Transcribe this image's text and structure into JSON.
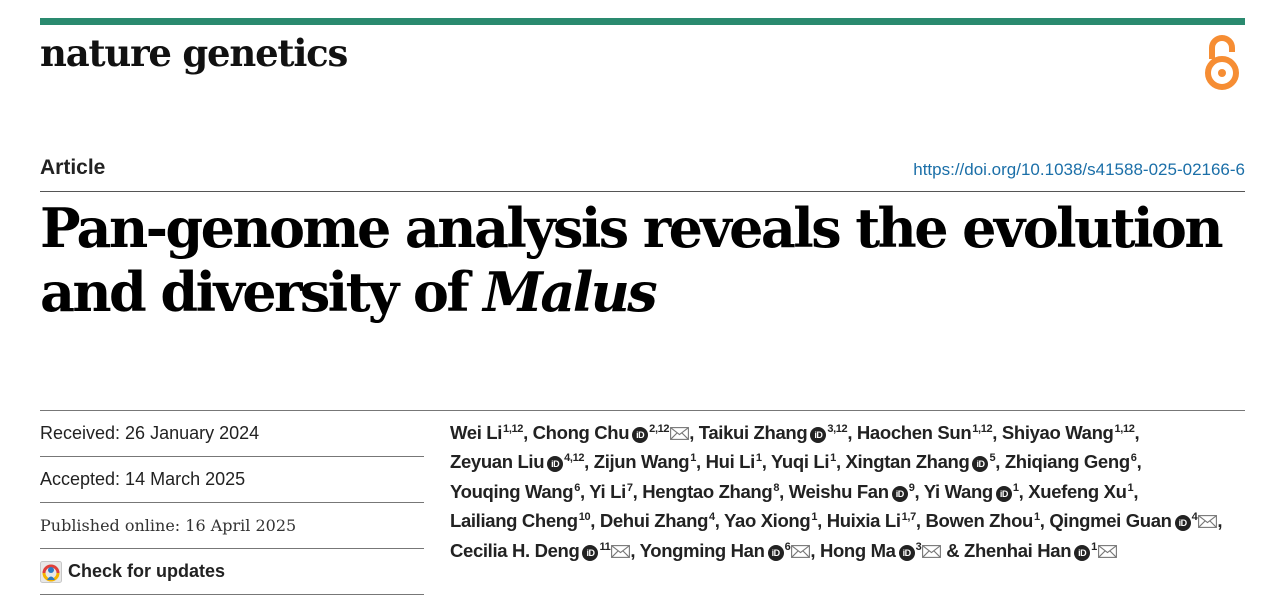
{
  "journal": {
    "name": "nature genetics",
    "accent_color": "#2a8a6f",
    "open_access_icon": "open-access-icon",
    "open_access_color": "#f68d33"
  },
  "article": {
    "type": "Article",
    "doi": "https://doi.org/10.1038/s41588-025-02166-6",
    "title_main": "Pan-genome analysis reveals the evolution and diversity of ",
    "title_species": "Malus",
    "link_color": "#1b6fa8"
  },
  "dates": {
    "received": "Received: 26 January 2024",
    "accepted": "Accepted: 14 March 2025",
    "published": "Published online: 16 April 2025",
    "check_updates": "Check for updates"
  },
  "authors": [
    {
      "name": "Wei Li",
      "aff": "1,12",
      "orcid": false,
      "corr": false
    },
    {
      "name": "Chong Chu",
      "aff": "2,12",
      "orcid": true,
      "corr": true
    },
    {
      "name": "Taikui Zhang",
      "aff": "3,12",
      "orcid": true,
      "corr": false
    },
    {
      "name": "Haochen Sun",
      "aff": "1,12",
      "orcid": false,
      "corr": false
    },
    {
      "name": "Shiyao Wang",
      "aff": "1,12",
      "orcid": false,
      "corr": false
    },
    {
      "name": "Zeyuan Liu",
      "aff": "4,12",
      "orcid": true,
      "corr": false
    },
    {
      "name": "Zijun Wang",
      "aff": "1",
      "orcid": false,
      "corr": false
    },
    {
      "name": "Hui Li",
      "aff": "1",
      "orcid": false,
      "corr": false
    },
    {
      "name": "Yuqi Li",
      "aff": "1",
      "orcid": false,
      "corr": false
    },
    {
      "name": "Xingtan Zhang",
      "aff": "5",
      "orcid": true,
      "corr": false
    },
    {
      "name": "Zhiqiang Geng",
      "aff": "6",
      "orcid": false,
      "corr": false
    },
    {
      "name": "Youqing Wang",
      "aff": "6",
      "orcid": false,
      "corr": false
    },
    {
      "name": "Yi Li",
      "aff": "7",
      "orcid": false,
      "corr": false
    },
    {
      "name": "Hengtao Zhang",
      "aff": "8",
      "orcid": false,
      "corr": false
    },
    {
      "name": "Weishu Fan",
      "aff": "9",
      "orcid": true,
      "corr": false
    },
    {
      "name": "Yi Wang",
      "aff": "1",
      "orcid": true,
      "corr": false
    },
    {
      "name": "Xuefeng Xu",
      "aff": "1",
      "orcid": false,
      "corr": false
    },
    {
      "name": "Lailiang Cheng",
      "aff": "10",
      "orcid": false,
      "corr": false
    },
    {
      "name": "Dehui Zhang",
      "aff": "4",
      "orcid": false,
      "corr": false
    },
    {
      "name": "Yao Xiong",
      "aff": "1",
      "orcid": false,
      "corr": false
    },
    {
      "name": "Huixia Li",
      "aff": "1,7",
      "orcid": false,
      "corr": false
    },
    {
      "name": "Bowen Zhou",
      "aff": "1",
      "orcid": false,
      "corr": false
    },
    {
      "name": "Qingmei Guan",
      "aff": "4",
      "orcid": true,
      "corr": true
    },
    {
      "name": "Cecilia H. Deng",
      "aff": "11",
      "orcid": true,
      "corr": true
    },
    {
      "name": "Yongming Han",
      "aff": "6",
      "orcid": true,
      "corr": true
    },
    {
      "name": "Hong Ma",
      "aff": "3",
      "orcid": true,
      "corr": true
    },
    {
      "name": "Zhenhai Han",
      "aff": "1",
      "orcid": true,
      "corr": true
    }
  ],
  "authors_conjunction": "&",
  "orcid_badge": "iD",
  "icons": {
    "orcid": "orcid-icon",
    "mail": "mail-icon",
    "check_updates": "check-updates-icon"
  }
}
